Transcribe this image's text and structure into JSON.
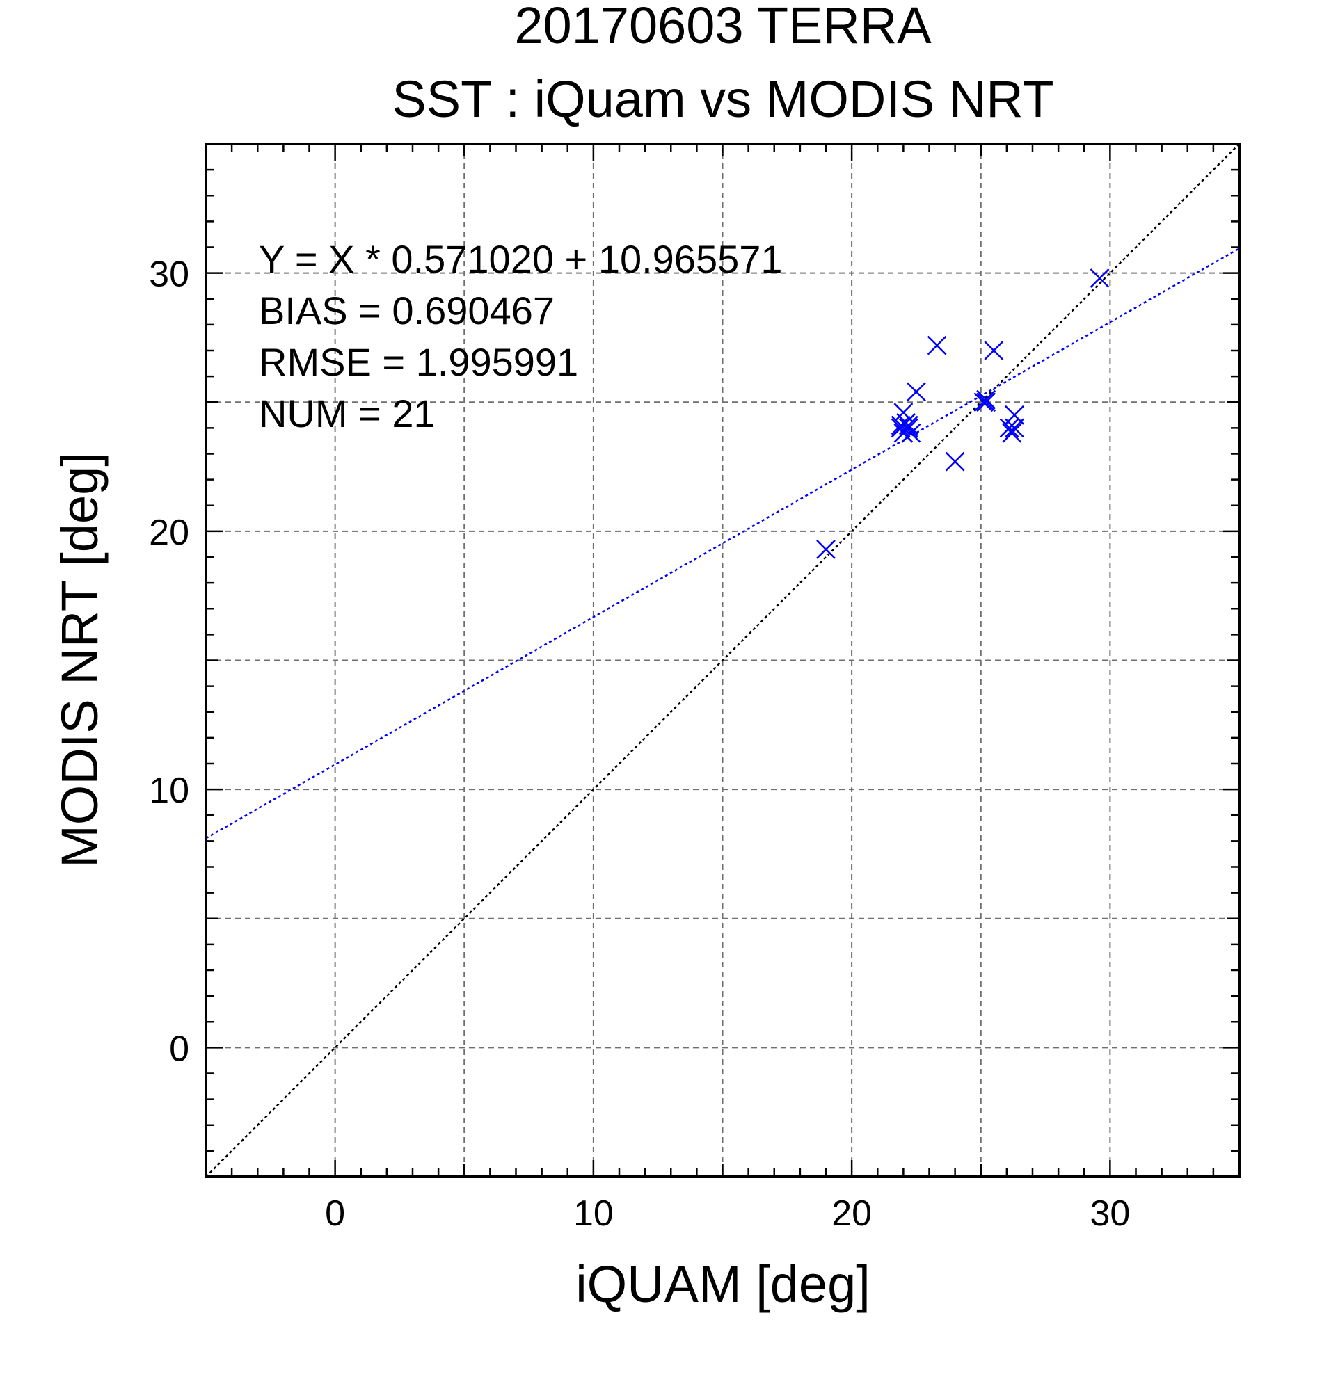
{
  "chart_data": {
    "type": "scatter",
    "title": "20170603 TERRA",
    "subtitle": "SST : iQuam vs MODIS NRT",
    "xlabel": "iQUAM [deg]",
    "ylabel": "MODIS NRT [deg]",
    "xlim": [
      -5,
      35
    ],
    "ylim": [
      -5,
      35
    ],
    "major_ticks": [
      0,
      10,
      20,
      30
    ],
    "grid_step": 5,
    "minor_tick_step": 1,
    "grid": true,
    "marker": "x",
    "series": [
      {
        "color": "#0000ff",
        "x": [
          19.0,
          21.9,
          22.0,
          22.0,
          22.1,
          22.2,
          22.3,
          22.5,
          23.3,
          24.0,
          25.1,
          25.2,
          25.5,
          26.1,
          26.2,
          26.3,
          29.6,
          21.9,
          22.2,
          25.2,
          26.3
        ],
        "y": [
          19.3,
          24.0,
          24.6,
          23.8,
          24.2,
          24.0,
          23.8,
          25.4,
          27.2,
          22.7,
          25.0,
          25.1,
          27.0,
          24.0,
          23.8,
          24.5,
          29.8,
          24.1,
          24.1,
          25.0,
          24.0
        ]
      }
    ],
    "lines": [
      {
        "name": "1:1",
        "slope": 1.0,
        "intercept": 0.0,
        "color": "#000000",
        "style": "dotted"
      },
      {
        "name": "fit",
        "slope": 0.57102,
        "intercept": 10.965571,
        "color": "#0000ff",
        "style": "dotted"
      }
    ],
    "annotations": [
      "Y = X * 0.571020 + 10.965571",
      "BIAS = 0.690467",
      "RMSE = 1.995991",
      "NUM = 21"
    ]
  }
}
